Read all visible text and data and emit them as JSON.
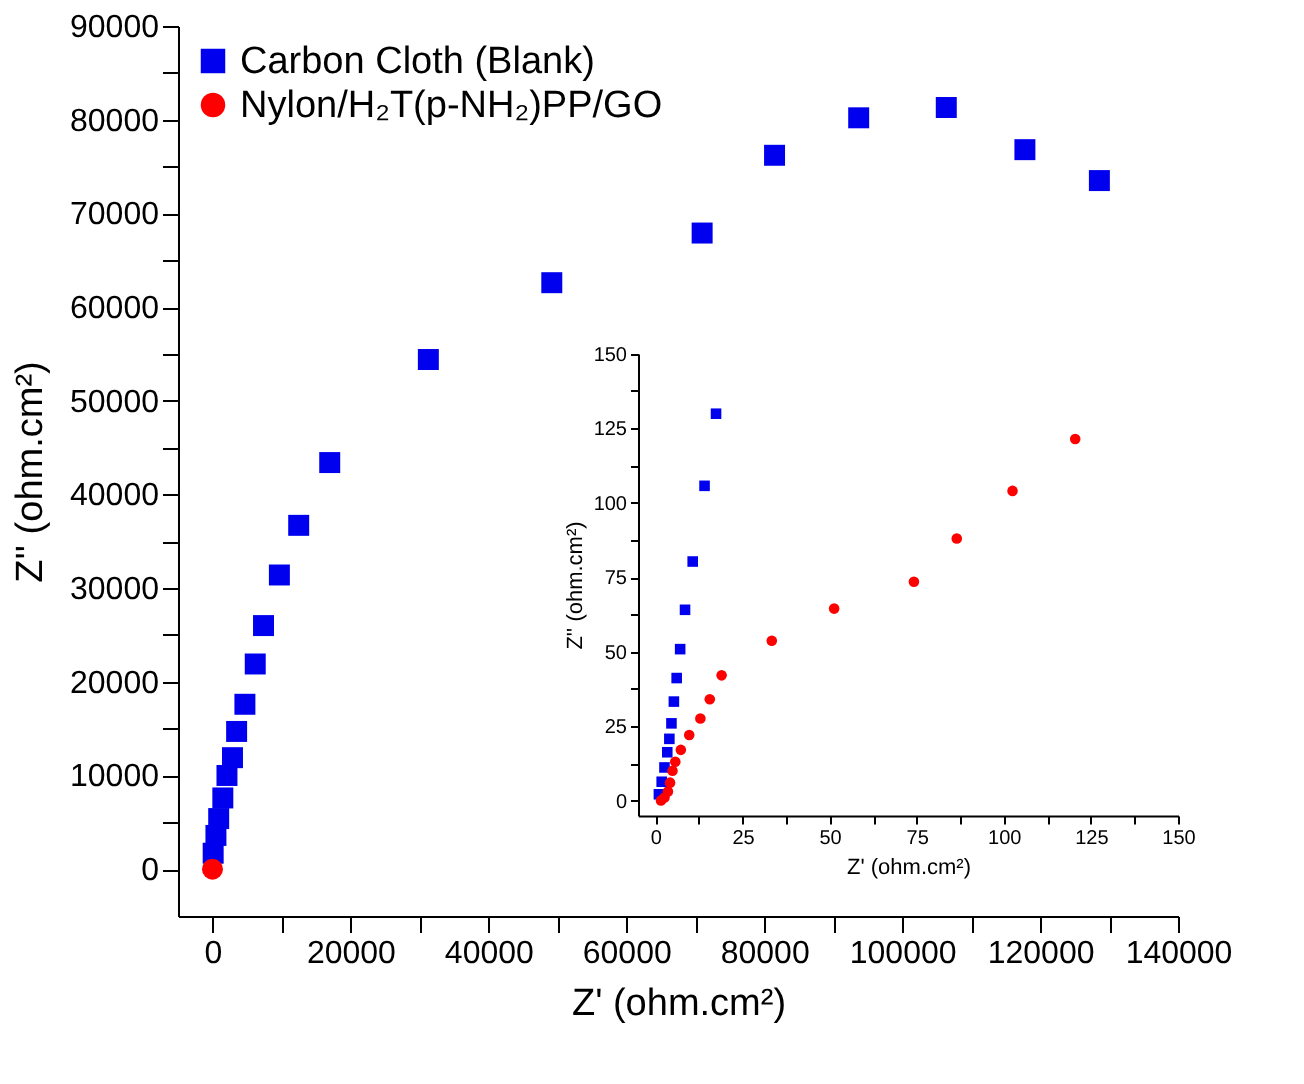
{
  "chart_data": [
    {
      "type": "scatter",
      "xlabel": "Z' (ohm.cm²)",
      "ylabel": "Z'' (ohm.cm²)",
      "xlim": [
        -5000,
        140000
      ],
      "ylim": [
        -5000,
        90000
      ],
      "xticks": [
        0,
        {
          "value": 10000,
          "label": null
        },
        20000,
        {
          "value": 30000,
          "label": null
        },
        40000,
        {
          "value": 50000,
          "label": null
        },
        60000,
        {
          "value": 70000,
          "label": null
        },
        80000,
        {
          "value": 90000,
          "label": null
        },
        100000,
        {
          "value": 110000,
          "label": null
        },
        120000,
        {
          "value": 130000,
          "label": null
        },
        140000
      ],
      "yticks": [
        0,
        {
          "value": 5000,
          "label": null
        },
        10000,
        {
          "value": 15000,
          "label": null
        },
        20000,
        {
          "value": 25000,
          "label": null
        },
        30000,
        {
          "value": 35000,
          "label": null
        },
        40000,
        {
          "value": 45000,
          "label": null
        },
        50000,
        {
          "value": 55000,
          "label": null
        },
        60000,
        {
          "value": 65000,
          "label": null
        },
        70000,
        {
          "value": 75000,
          "label": null
        },
        80000,
        {
          "value": 85000,
          "label": null
        },
        90000
      ],
      "grid": false,
      "legend": "top left",
      "series": [
        {
          "name": "Carbon Cloth (Blank)",
          "color": "#0000ee",
          "marker": "square",
          "x": [
            100,
            500,
            900,
            1500,
            2100,
            2900,
            3500,
            4700,
            6200,
            7400,
            9700,
            12500,
            17000,
            31300,
            49200,
            71000,
            81500,
            93700,
            106400,
            117800,
            128600
          ],
          "values": [
            1700,
            3600,
            5400,
            7600,
            10000,
            11900,
            14700,
            17600,
            21900,
            26000,
            31400,
            36700,
            43400,
            54400,
            62600,
            67900,
            76200,
            80200,
            81300,
            76800,
            73500
          ]
        },
        {
          "name": "Nylon/H₂T(p-NH₂)PP/GO",
          "color": "#ff0000",
          "marker": "circle",
          "x": [
            0
          ],
          "values": [
            0
          ]
        }
      ]
    },
    {
      "type": "scatter",
      "xlabel": "Z' (ohm.cm²)",
      "ylabel": "Z'' (ohm.cm²)",
      "xlim": [
        -5,
        150
      ],
      "ylim": [
        -5,
        150
      ],
      "xticks": [
        0,
        {
          "value": 12.5,
          "label": null
        },
        25,
        {
          "value": 37.5,
          "label": null
        },
        50,
        {
          "value": 62.5,
          "label": null
        },
        75,
        {
          "value": 87.5,
          "label": null
        },
        100,
        {
          "value": 112.5,
          "label": null
        },
        125,
        {
          "value": 137.5,
          "label": null
        },
        150
      ],
      "yticks": [
        0,
        {
          "value": 12.5,
          "label": null
        },
        25,
        {
          "value": 37.5,
          "label": null
        },
        50,
        {
          "value": 62.5,
          "label": null
        },
        75,
        {
          "value": 87.5,
          "label": null
        },
        100,
        {
          "value": 112.5,
          "label": null
        },
        125,
        {
          "value": 137.5,
          "label": null
        },
        150
      ],
      "grid": false,
      "series": [
        {
          "color": "#0000ee",
          "marker": "square",
          "x": [
            1.0,
            1.8,
            2.6,
            3.4,
            4.0,
            4.6,
            5.3,
            6.1,
            7.1,
            8.5,
            10.7,
            14.1,
            17.4
          ],
          "values": [
            2.1,
            6.3,
            11.1,
            16.2,
            20.7,
            25.9,
            33.2,
            41.1,
            50.8,
            64.0,
            80.2,
            105.6,
            129.8
          ]
        },
        {
          "color": "#ff0000",
          "marker": "circle",
          "x": [
            1.6,
            2.6,
            3.6,
            4.2,
            4.9,
            5.7,
            7.3,
            9.7,
            12.9,
            15.6,
            19,
            33.4,
            51.3,
            74.2,
            86.5,
            102.5,
            120.5
          ],
          "values": [
            0,
            1,
            3,
            6,
            10,
            13,
            17,
            22,
            27.5,
            34,
            42,
            53.6,
            64.4,
            73.4,
            87.9,
            103.9,
            121.3
          ]
        }
      ]
    }
  ]
}
